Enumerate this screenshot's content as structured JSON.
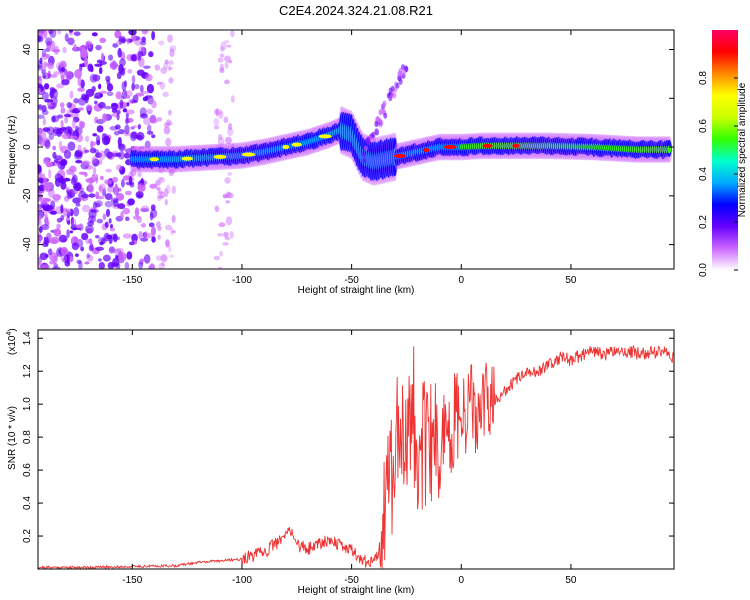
{
  "figure_title": "C2E4.2024.324.21.08.R21",
  "chart_data": [
    {
      "type": "heatmap",
      "title": "C2E4.2024.324.21.08.R21",
      "xlabel": "Height of straight line (km)",
      "ylabel": "Frequency (Hz)",
      "xlim": [
        -193,
        97
      ],
      "ylim": [
        -50,
        48
      ],
      "xticks": [
        -150,
        -100,
        -50,
        0,
        50
      ],
      "xtick_labels": [
        "-150",
        "-100",
        "-50",
        "0",
        "50"
      ],
      "yticks": [
        -40,
        -20,
        0,
        20,
        40
      ],
      "ytick_labels": [
        "-40",
        "-20",
        "0",
        "20",
        "40"
      ],
      "colorbar": {
        "label": "Normalized spectral amplitude",
        "range": [
          0,
          1
        ],
        "ticks": [
          0.0,
          0.2,
          0.4,
          0.6,
          0.8
        ],
        "tick_labels": [
          "0.0",
          "0.2",
          "0.4",
          "0.6",
          "0.8"
        ],
        "colormap": [
          "#ffffff",
          "#cc66ff",
          "#6600ff",
          "#0000ff",
          "#00aaff",
          "#00ffcc",
          "#33ff00",
          "#ccff00",
          "#ffff00",
          "#ff8800",
          "#ff0000",
          "#ff0066"
        ]
      },
      "ridge": {
        "x": [
          -150,
          -130,
          -110,
          -100,
          -90,
          -80,
          -70,
          -60,
          -55,
          -50,
          -45,
          -40,
          -35,
          -30,
          -25,
          -20,
          -10,
          0,
          10,
          20,
          40,
          60,
          80,
          95
        ],
        "y": [
          -5,
          -5,
          -4,
          -3.5,
          -2,
          0,
          2,
          5,
          7,
          5,
          -4,
          -6,
          -5,
          -4,
          -3,
          -2,
          0,
          0,
          0.5,
          0.5,
          0.5,
          0,
          -1,
          -1
        ]
      }
    },
    {
      "type": "line",
      "xlabel": "Height of straight line (km)",
      "ylabel": "SNR (10 * v/v)",
      "y_multiplier_label": "(x10",
      "y_multiplier_exp": "4",
      "xlim": [
        -193,
        97
      ],
      "ylim": [
        0.0,
        1.45
      ],
      "xticks": [
        -150,
        -100,
        -50,
        0,
        50
      ],
      "xtick_labels": [
        "-150",
        "-100",
        "-50",
        "0",
        "50"
      ],
      "yticks": [
        0.2,
        0.4,
        0.6,
        0.8,
        1.0,
        1.2,
        1.4
      ],
      "ytick_labels": [
        "0.2",
        "0.4",
        "0.6",
        "0.8",
        "1.0",
        "1.2",
        "1.4"
      ],
      "color": "#ee3333",
      "series": [
        {
          "name": "SNR",
          "x": [
            -193,
            -170,
            -150,
            -130,
            -120,
            -110,
            -100,
            -95,
            -90,
            -85,
            -80,
            -78,
            -75,
            -70,
            -65,
            -60,
            -55,
            -50,
            -45,
            -40,
            -38,
            -35,
            -33,
            -30,
            -28,
            -25,
            -22,
            -20,
            -18,
            -15,
            -12,
            -10,
            -8,
            -5,
            -3,
            0,
            3,
            5,
            8,
            10,
            12,
            15,
            18,
            20,
            25,
            30,
            35,
            40,
            45,
            50,
            55,
            60,
            65,
            70,
            75,
            80,
            85,
            90,
            95,
            97
          ],
          "y": [
            0.01,
            0.01,
            0.015,
            0.02,
            0.04,
            0.05,
            0.06,
            0.08,
            0.1,
            0.15,
            0.2,
            0.25,
            0.15,
            0.12,
            0.16,
            0.18,
            0.14,
            0.12,
            0.05,
            0.04,
            0.1,
            0.4,
            0.55,
            0.7,
            0.85,
            0.9,
            0.95,
            0.8,
            0.75,
            0.65,
            0.8,
            0.7,
            0.85,
            0.75,
            0.95,
            0.85,
            0.95,
            1.0,
            0.9,
            0.95,
            1.0,
            1.02,
            1.05,
            1.08,
            1.15,
            1.18,
            1.2,
            1.25,
            1.28,
            1.27,
            1.3,
            1.32,
            1.3,
            1.33,
            1.32,
            1.31,
            1.3,
            1.33,
            1.3,
            1.28
          ]
        }
      ]
    }
  ]
}
